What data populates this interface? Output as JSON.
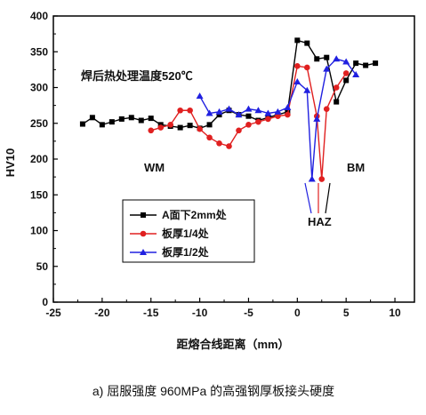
{
  "caption": "a) 屈服强度 960MPa 的高强钢厚板接头硬度",
  "chart_data": {
    "type": "line",
    "xlabel": "距熔合线距离（mm）",
    "ylabel": "HV10",
    "xlim": [
      -25,
      12
    ],
    "ylim": [
      0,
      400
    ],
    "xticks": [
      -25,
      -20,
      -15,
      -10,
      -5,
      0,
      5,
      10
    ],
    "yticks": [
      0,
      50,
      100,
      150,
      200,
      250,
      300,
      350,
      400
    ],
    "grid": false,
    "legend_position": "lower-left",
    "annotations": {
      "heat_treatment": "焊后热处理温度520℃",
      "wm": "WM",
      "bm": "BM",
      "haz": "HAZ"
    },
    "series": [
      {
        "name": "A面下2mm处",
        "color": "#000000",
        "marker": "square",
        "x": [
          -22,
          -21,
          -20,
          -19,
          -18,
          -17,
          -16,
          -15,
          -14,
          -13,
          -12,
          -11,
          -10,
          -9,
          -8,
          -7,
          -6,
          -5,
          -4,
          -3,
          -2,
          -1,
          0,
          1,
          2,
          3,
          4,
          5,
          6,
          7,
          8
        ],
        "y": [
          249,
          258,
          248,
          252,
          256,
          258,
          254,
          257,
          248,
          246,
          244,
          247,
          243,
          248,
          262,
          268,
          262,
          260,
          254,
          258,
          262,
          266,
          366,
          362,
          340,
          342,
          280,
          310,
          334,
          331,
          334
        ]
      },
      {
        "name": "板厚1/4处",
        "color": "#e02020",
        "marker": "circle",
        "x": [
          -15,
          -14,
          -13,
          -12,
          -11,
          -10,
          -9,
          -8,
          -7,
          -6,
          -5,
          -4,
          -3,
          -2,
          -1,
          0,
          1,
          2,
          2.5,
          3,
          4,
          5
        ],
        "y": [
          240,
          244,
          248,
          268,
          268,
          242,
          230,
          222,
          218,
          240,
          248,
          252,
          256,
          260,
          262,
          330,
          328,
          260,
          172,
          270,
          300,
          320
        ]
      },
      {
        "name": "板厚1/2处",
        "color": "#2020e0",
        "marker": "triangle",
        "x": [
          -10,
          -9,
          -8,
          -7,
          -6,
          -5,
          -4,
          -3,
          -2,
          -1,
          0,
          1,
          1.5,
          2,
          3,
          4,
          5,
          6
        ],
        "y": [
          288,
          264,
          266,
          270,
          262,
          270,
          268,
          264,
          266,
          272,
          308,
          296,
          172,
          256,
          326,
          340,
          336,
          318
        ]
      }
    ]
  }
}
